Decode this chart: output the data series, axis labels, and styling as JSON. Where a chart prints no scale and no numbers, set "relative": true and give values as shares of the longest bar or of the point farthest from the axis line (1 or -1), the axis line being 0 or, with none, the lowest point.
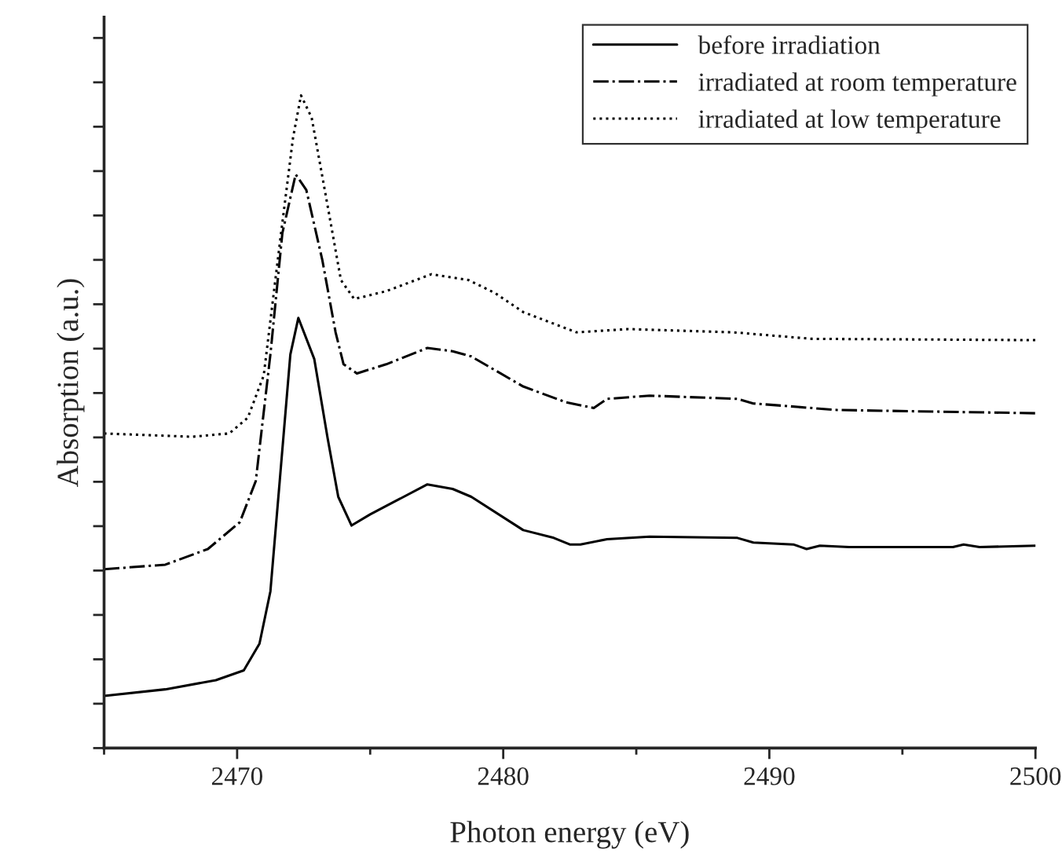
{
  "chart_data": {
    "type": "line",
    "relative": true,
    "xlabel": "Photon energy (eV)",
    "ylabel": "Absorption (a.u.)",
    "xlim": [
      2465,
      2500
    ],
    "xticks": [
      2470,
      2480,
      2490,
      2500
    ],
    "tick_labels": "x",
    "legend": "top right",
    "grid": false,
    "series": [
      {
        "name": "before irradiation",
        "color": "#000000",
        "line_style": "solid",
        "x": [
          2465,
          2467.3,
          2469.2,
          2470.25,
          2470.84,
          2471.25,
          2471.6,
          2472.0,
          2472.3,
          2472.9,
          2473.4,
          2473.8,
          2474.3,
          2475.0,
          2475.7,
          2477.15,
          2478.1,
          2478.8,
          2480.75,
          2481.9,
          2482.5,
          2482.9,
          2483.9,
          2485.5,
          2488.8,
          2489.4,
          2490.9,
          2491.4,
          2491.9,
          2493.0,
          2496.9,
          2497.3,
          2497.9,
          2500
        ],
        "values": [
          0.08,
          0.09,
          0.104,
          0.119,
          0.16,
          0.24,
          0.409,
          0.603,
          0.659,
          0.596,
          0.475,
          0.385,
          0.341,
          0.358,
          0.373,
          0.404,
          0.397,
          0.385,
          0.334,
          0.322,
          0.312,
          0.312,
          0.32,
          0.324,
          0.322,
          0.315,
          0.312,
          0.305,
          0.31,
          0.308,
          0.308,
          0.312,
          0.308,
          0.31
        ]
      },
      {
        "name": "irradiated at room temperature",
        "color": "#000000",
        "line_style": "dashdot",
        "x": [
          2465,
          2467.3,
          2468.9,
          2470.1,
          2470.7,
          2471.25,
          2471.7,
          2472.2,
          2472.6,
          2473.2,
          2473.7,
          2474.0,
          2474.5,
          2475.6,
          2477.15,
          2478.1,
          2478.8,
          2480.75,
          2482.35,
          2483.4,
          2483.9,
          2485.5,
          2488.8,
          2489.4,
          2492.55,
          2495.5,
          2500
        ],
        "values": [
          0.274,
          0.281,
          0.305,
          0.346,
          0.409,
          0.603,
          0.789,
          0.879,
          0.855,
          0.748,
          0.637,
          0.588,
          0.574,
          0.588,
          0.613,
          0.608,
          0.6,
          0.554,
          0.53,
          0.521,
          0.535,
          0.54,
          0.535,
          0.528,
          0.518,
          0.516,
          0.513
        ]
      },
      {
        "name": "irradiated at low temperature",
        "color": "#000000",
        "line_style": "dotted",
        "x": [
          2465,
          2468.3,
          2469.7,
          2470.4,
          2471.0,
          2471.6,
          2472.1,
          2472.4,
          2472.8,
          2473.4,
          2473.9,
          2474.4,
          2475.6,
          2477.3,
          2478.7,
          2479.7,
          2480.75,
          2482.75,
          2484.7,
          2488.65,
          2491.6,
          2500
        ],
        "values": [
          0.482,
          0.477,
          0.482,
          0.506,
          0.571,
          0.772,
          0.935,
          1.0,
          0.966,
          0.831,
          0.717,
          0.688,
          0.7,
          0.726,
          0.717,
          0.697,
          0.668,
          0.637,
          0.642,
          0.637,
          0.627,
          0.625
        ]
      }
    ]
  }
}
